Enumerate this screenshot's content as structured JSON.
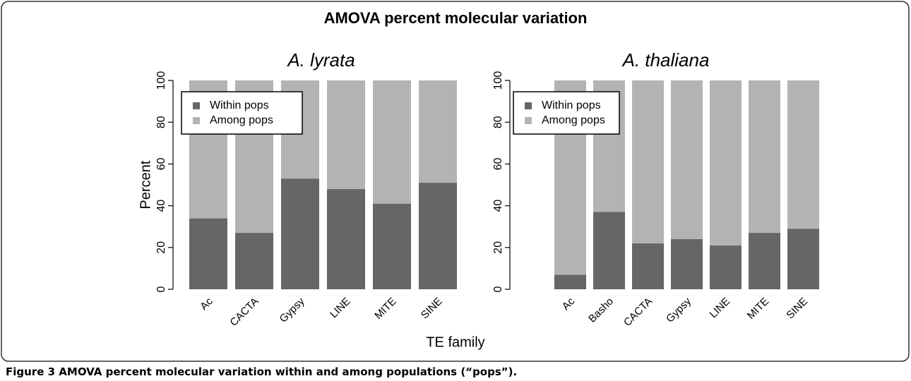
{
  "title": "AMOVA percent molecular variation",
  "xlabel": "TE family",
  "caption": {
    "label": "Figure 3",
    "text": "AMOVA percent molecular variation within and among populations (“pops”)."
  },
  "chart_data": [
    {
      "type": "bar",
      "stacked": true,
      "title": "A. lyrata",
      "ylabel": "Percent",
      "categories": [
        "Ac",
        "CACTA",
        "Gypsy",
        "LINE",
        "MITE",
        "SINE"
      ],
      "series": [
        {
          "name": "Within pops",
          "color": "#666666",
          "values": [
            34,
            27,
            53,
            48,
            41,
            51
          ]
        },
        {
          "name": "Among pops",
          "color": "#b3b3b3",
          "values": [
            66,
            73,
            47,
            52,
            59,
            49
          ]
        }
      ],
      "ylim": [
        0,
        100
      ],
      "yticks": [
        0,
        20,
        40,
        60,
        80,
        100
      ],
      "legend": "upper left"
    },
    {
      "type": "bar",
      "stacked": true,
      "title": "A. thaliana",
      "categories": [
        "Ac",
        "Basho",
        "CACTA",
        "Gypsy",
        "LINE",
        "MITE",
        "SINE"
      ],
      "series": [
        {
          "name": "Within pops",
          "color": "#666666",
          "values": [
            7,
            37,
            22,
            24,
            21,
            27,
            29
          ]
        },
        {
          "name": "Among pops",
          "color": "#b3b3b3",
          "values": [
            93,
            63,
            78,
            76,
            79,
            73,
            71
          ]
        }
      ],
      "ylim": [
        0,
        100
      ],
      "yticks": [
        0,
        20,
        40,
        60,
        80,
        100
      ],
      "legend": "upper left"
    }
  ]
}
